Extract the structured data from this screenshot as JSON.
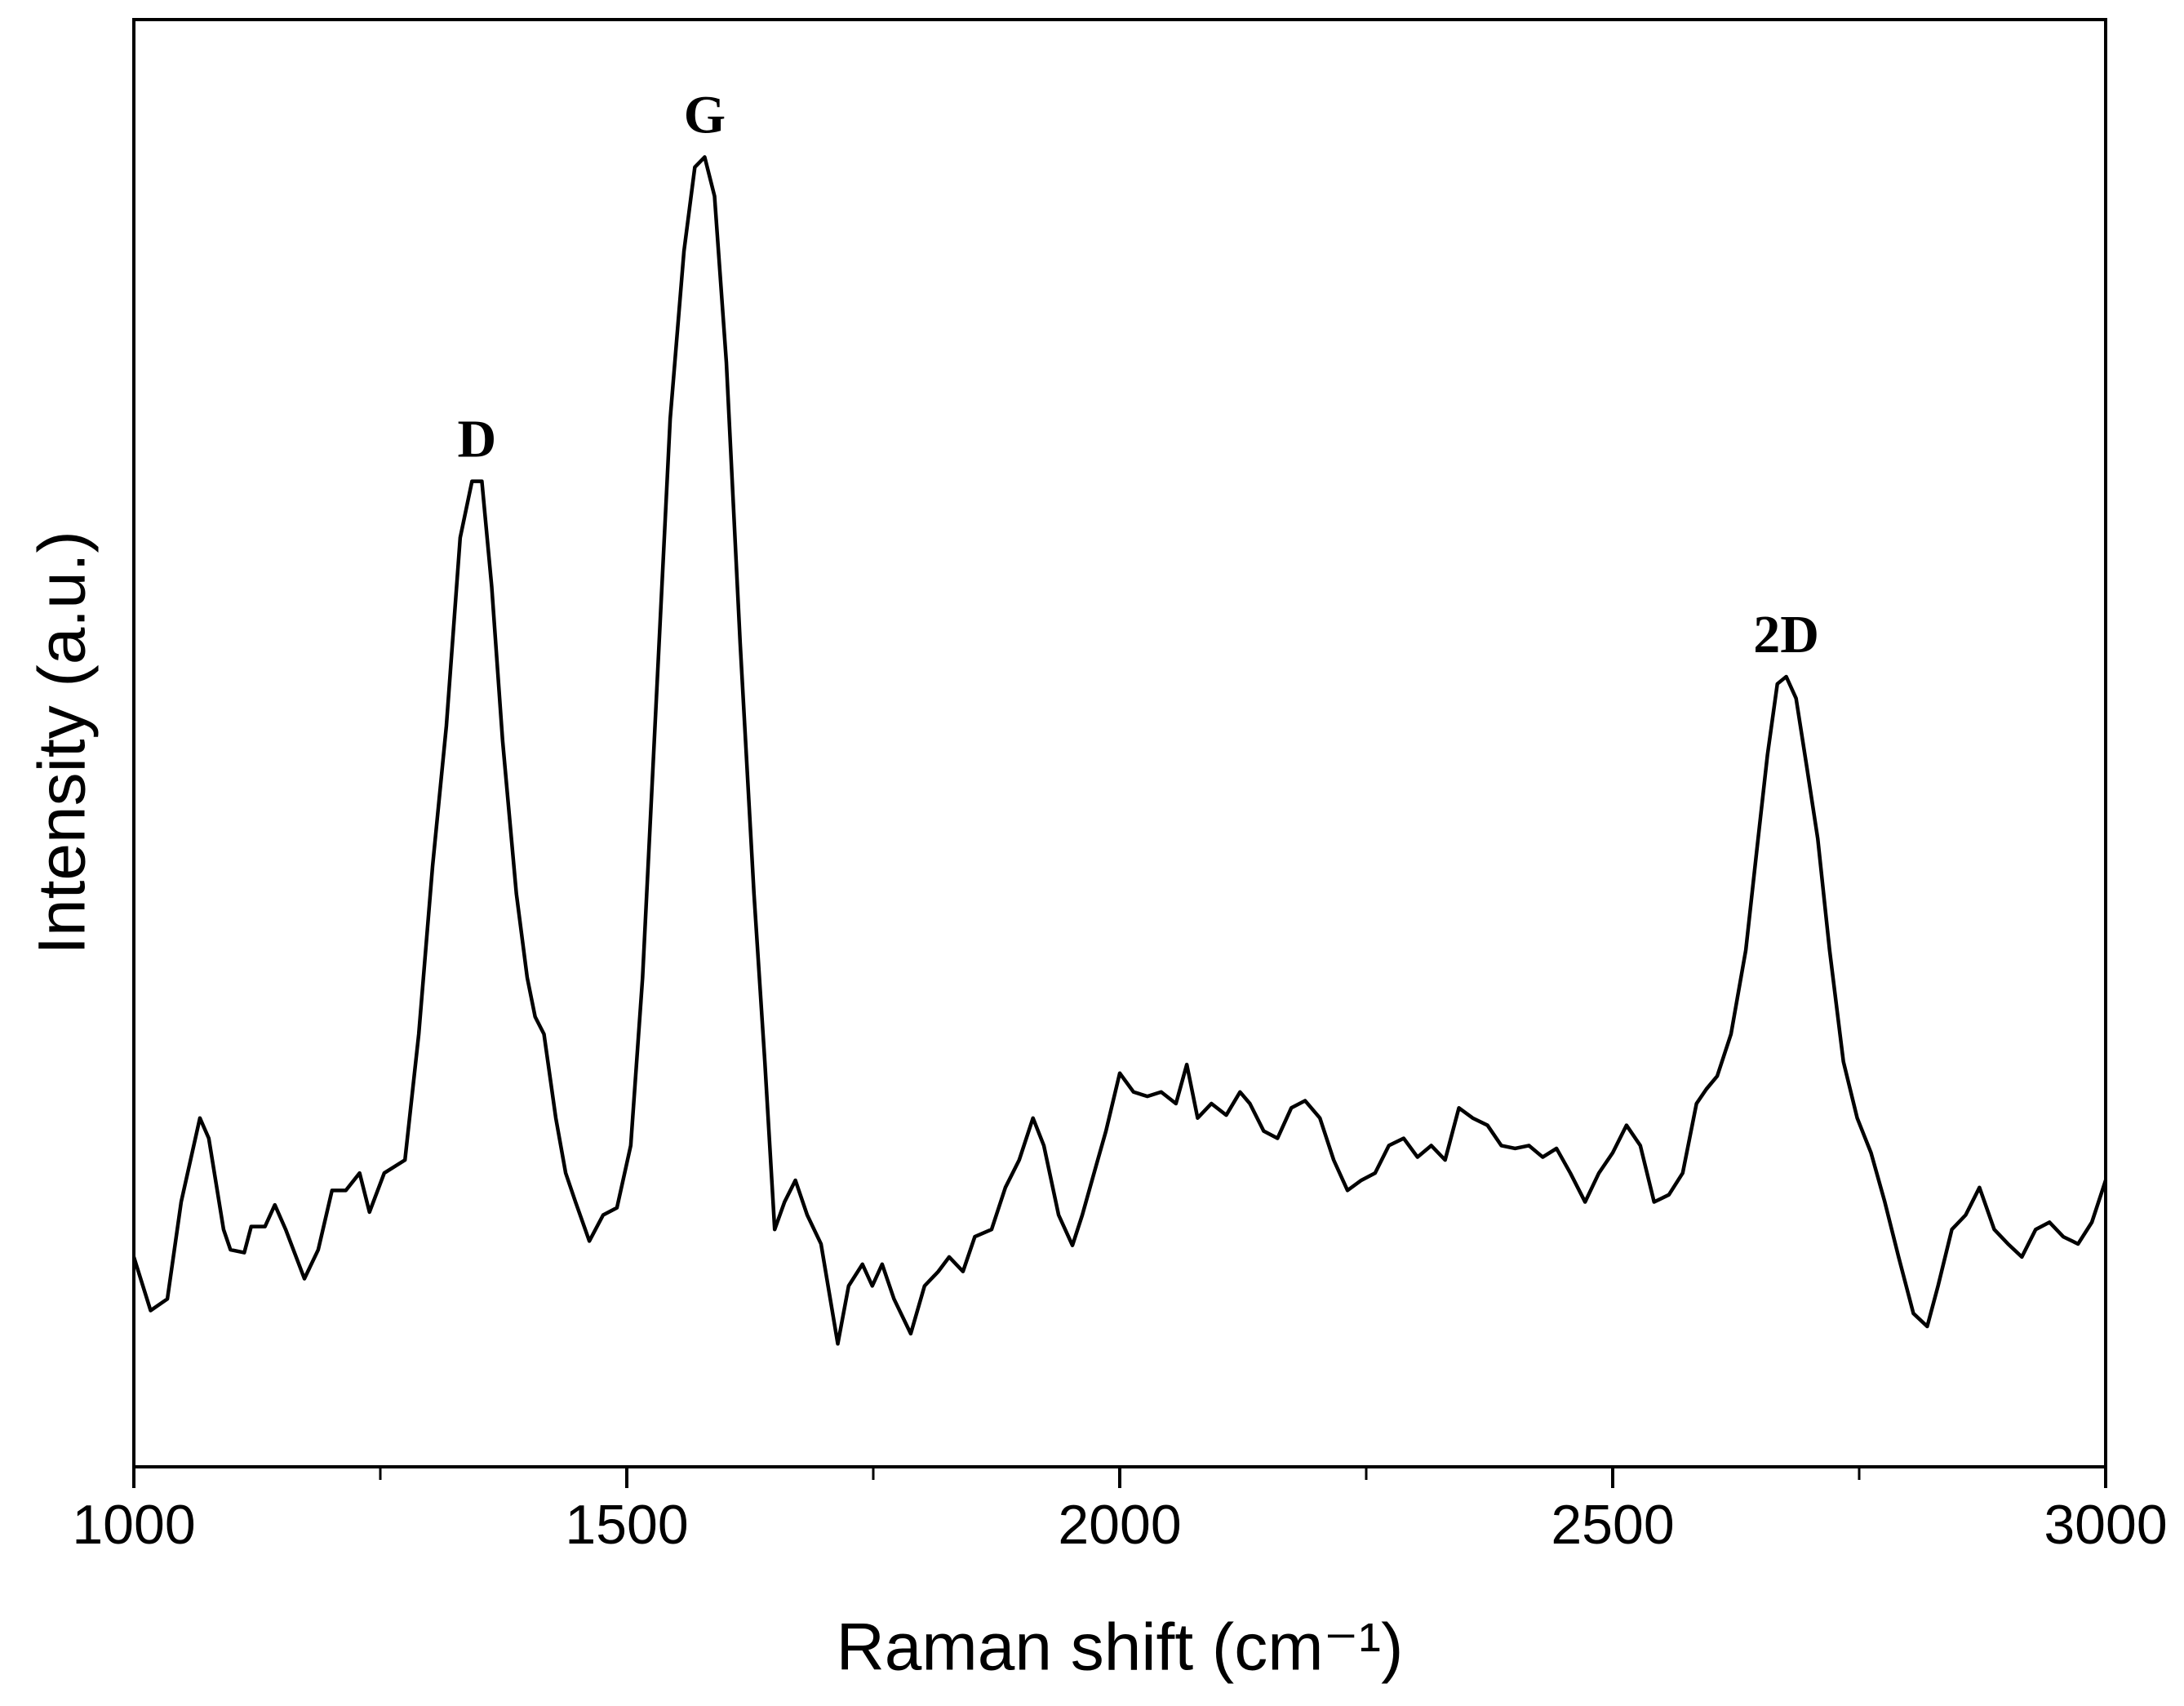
{
  "chart_data": {
    "type": "line",
    "x_label": "Raman shift (cm⁻¹)",
    "y_label": "Intensity (a.u.)",
    "xlim": [
      1000,
      3000
    ],
    "xticks": [
      1000,
      1500,
      2000,
      2500,
      3000
    ],
    "minor_xticks": [
      1250,
      1750,
      2250,
      2750
    ],
    "ylim": [
      0,
      100
    ],
    "series": [
      {
        "color": "#000000",
        "x": [
          1000,
          1017,
          1034,
          1048,
          1067,
          1076,
          1091,
          1098,
          1112,
          1119,
          1133,
          1143,
          1154,
          1173,
          1187,
          1201,
          1215,
          1229,
          1239,
          1254,
          1275,
          1289,
          1303,
          1317,
          1331,
          1343,
          1353,
          1363,
          1374,
          1388,
          1399,
          1407,
          1416,
          1428,
          1438,
          1448,
          1462,
          1476,
          1490,
          1504,
          1516,
          1530,
          1544,
          1558,
          1569,
          1579,
          1589,
          1601,
          1615,
          1629,
          1640,
          1650,
          1660,
          1671,
          1683,
          1697,
          1714,
          1725,
          1739,
          1749,
          1759,
          1771,
          1788,
          1802,
          1816,
          1827,
          1841,
          1853,
          1870,
          1884,
          1898,
          1912,
          1923,
          1938,
          1952,
          1962,
          1976,
          1986,
          2000,
          2014,
          2028,
          2042,
          2057,
          2068,
          2079,
          2093,
          2108,
          2122,
          2132,
          2146,
          2160,
          2174,
          2188,
          2203,
          2217,
          2231,
          2245,
          2259,
          2273,
          2288,
          2302,
          2316,
          2330,
          2344,
          2358,
          2373,
          2387,
          2401,
          2415,
          2429,
          2443,
          2457,
          2472,
          2486,
          2500,
          2514,
          2528,
          2542,
          2557,
          2571,
          2585,
          2595,
          2606,
          2620,
          2635,
          2646,
          2657,
          2667,
          2676,
          2686,
          2697,
          2708,
          2720,
          2734,
          2748,
          2762,
          2776,
          2790,
          2805,
          2819,
          2830,
          2844,
          2858,
          2872,
          2887,
          2901,
          2915,
          2929,
          2943,
          2957,
          2972,
          2986,
          3000
        ],
        "values": [
          14.5,
          10.8,
          11.6,
          18.3,
          24.1,
          22.7,
          16.4,
          15.0,
          14.8,
          16.6,
          16.6,
          18.1,
          16.4,
          13.0,
          15.0,
          19.1,
          19.1,
          20.3,
          17.6,
          20.3,
          21.2,
          29.9,
          41.5,
          51.2,
          64.2,
          68.1,
          68.1,
          60.8,
          50.2,
          39.6,
          33.8,
          31.1,
          29.9,
          24.1,
          20.3,
          18.3,
          15.6,
          17.4,
          17.9,
          22.2,
          33.8,
          53.1,
          72.4,
          84.0,
          89.8,
          90.5,
          87.8,
          76.3,
          56.9,
          39.6,
          28.0,
          16.4,
          18.3,
          19.8,
          17.4,
          15.4,
          8.5,
          12.5,
          14.0,
          12.5,
          14.0,
          11.6,
          9.2,
          12.5,
          13.5,
          14.5,
          13.5,
          15.9,
          16.4,
          19.3,
          21.2,
          24.1,
          22.2,
          17.4,
          15.3,
          17.4,
          20.8,
          23.2,
          27.2,
          25.9,
          25.6,
          25.9,
          25.1,
          27.8,
          24.1,
          25.1,
          24.3,
          25.9,
          25.1,
          23.2,
          22.7,
          24.8,
          25.3,
          24.1,
          21.2,
          19.1,
          19.8,
          20.3,
          22.2,
          22.7,
          21.4,
          22.2,
          21.2,
          24.8,
          24.1,
          23.6,
          22.2,
          22.0,
          22.2,
          21.4,
          22.0,
          20.3,
          18.3,
          20.3,
          21.7,
          23.6,
          22.2,
          18.3,
          18.8,
          20.3,
          25.1,
          26.1,
          27.0,
          29.9,
          35.7,
          42.5,
          49.2,
          54.1,
          54.6,
          53.1,
          48.3,
          43.4,
          35.7,
          28.0,
          24.1,
          21.7,
          18.3,
          14.5,
          10.6,
          9.7,
          12.5,
          16.4,
          17.4,
          19.3,
          16.4,
          15.4,
          14.5,
          16.4,
          16.9,
          15.9,
          15.4,
          16.9,
          19.8
        ]
      }
    ],
    "annotations": [
      {
        "text": "D",
        "x": 1348
      },
      {
        "text": "G",
        "x": 1579
      },
      {
        "text": "2D",
        "x": 2676
      }
    ]
  }
}
